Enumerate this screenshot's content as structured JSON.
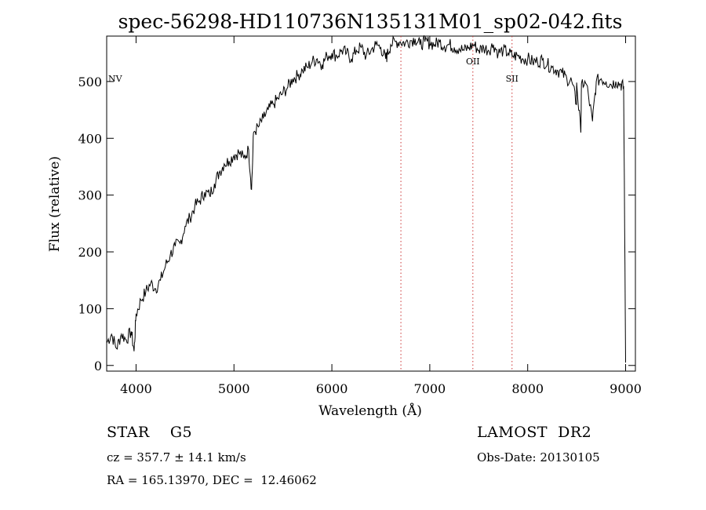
{
  "chart_data": {
    "type": "line",
    "title": "spec-56298-HD110736N135131M01_sp02-042.fits",
    "xlabel": "Wavelength (Å)",
    "ylabel": "Flux (relative)",
    "xlim": [
      3700,
      9100
    ],
    "ylim": [
      -10,
      580
    ],
    "xticks": [
      4000,
      5000,
      6000,
      7000,
      8000,
      9000
    ],
    "yticks": [
      0,
      100,
      200,
      300,
      400,
      500
    ],
    "grid": false,
    "series": [
      {
        "x": [
          3700,
          3750,
          3800,
          3850,
          3900,
          3950,
          3980,
          4000,
          4050,
          4100,
          4150,
          4200,
          4250,
          4300,
          4350,
          4400,
          4450,
          4500,
          4550,
          4600,
          4650,
          4700,
          4750,
          4800,
          4850,
          4900,
          4950,
          5000,
          5050,
          5100,
          5150,
          5180,
          5200,
          5250,
          5300,
          5350,
          5400,
          5450,
          5500,
          5550,
          5600,
          5650,
          5700,
          5750,
          5800,
          5850,
          5900,
          5950,
          6000,
          6050,
          6100,
          6150,
          6200,
          6250,
          6300,
          6350,
          6400,
          6450,
          6500,
          6550,
          6563,
          6600,
          6650,
          6700,
          6750,
          6800,
          6850,
          6900,
          6950,
          7000,
          7050,
          7100,
          7150,
          7200,
          7250,
          7300,
          7350,
          7400,
          7450,
          7500,
          7550,
          7600,
          7650,
          7700,
          7750,
          7800,
          7850,
          7900,
          7950,
          8000,
          8050,
          8100,
          8150,
          8200,
          8250,
          8300,
          8350,
          8400,
          8450,
          8498,
          8500,
          8542,
          8550,
          8600,
          8662,
          8700,
          8750,
          8800,
          8850,
          8900,
          8950,
          8980,
          9000
        ],
        "y": [
          40,
          55,
          30,
          55,
          45,
          60,
          25,
          90,
          115,
          130,
          145,
          135,
          150,
          175,
          195,
          210,
          215,
          245,
          260,
          280,
          290,
          305,
          300,
          320,
          340,
          355,
          360,
          370,
          375,
          365,
          380,
          310,
          410,
          420,
          435,
          450,
          460,
          470,
          480,
          490,
          505,
          510,
          520,
          525,
          535,
          540,
          530,
          545,
          550,
          545,
          555,
          550,
          540,
          555,
          560,
          545,
          555,
          565,
          560,
          540,
          545,
          565,
          570,
          570,
          568,
          572,
          575,
          565,
          570,
          568,
          565,
          570,
          562,
          565,
          560,
          558,
          555,
          560,
          565,
          555,
          560,
          555,
          565,
          550,
          555,
          550,
          545,
          545,
          540,
          540,
          535,
          535,
          538,
          530,
          525,
          520,
          515,
          505,
          500,
          460,
          498,
          410,
          498,
          495,
          430,
          500,
          505,
          500,
          495,
          500,
          495,
          490,
          5
        ]
      }
    ],
    "lines": [
      {
        "label": "",
        "x": 6705
      },
      {
        "label": "OII",
        "x": 7440
      },
      {
        "label": "SII",
        "x": 7840
      }
    ],
    "line_labels": [
      {
        "label": "NV",
        "x": 3700,
        "y": 500
      },
      {
        "label": "OII",
        "x": 7440,
        "y": 530
      },
      {
        "label": "SII",
        "x": 7840,
        "y": 500
      }
    ]
  },
  "footer": {
    "object_class": "STAR    G5",
    "survey": "LAMOST  DR2",
    "redshift": "cz = 357.7 ± 14.1 km/s",
    "obs_date": "Obs-Date: 20130105",
    "coords": "RA = 165.13970, DEC =  12.46062"
  }
}
